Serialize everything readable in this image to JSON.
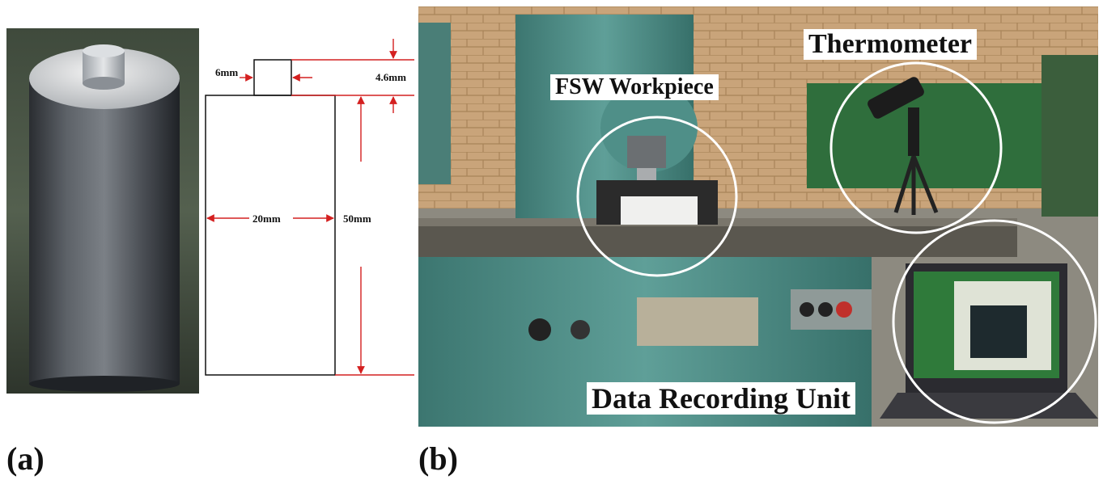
{
  "panel_a": {
    "label": "(a)",
    "dimensions": {
      "pin_width": "6mm",
      "pin_height": "4.6mm",
      "body_width": "20mm",
      "body_height": "50mm"
    }
  },
  "panel_b": {
    "label": "(b)",
    "callouts": {
      "workpiece": "FSW Workpiece",
      "thermometer": "Thermometer",
      "data_unit": "Data Recording Unit"
    }
  },
  "colors": {
    "dimension_red": "#d42020",
    "machine_teal": "#4f8f88",
    "wall_brick": "#c9a47a",
    "laptop_dark": "#2b2b30"
  }
}
